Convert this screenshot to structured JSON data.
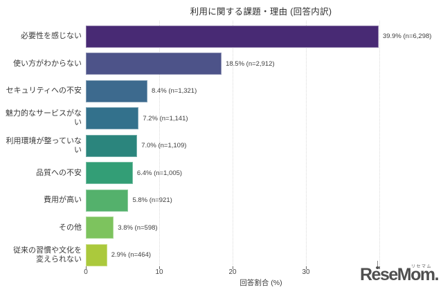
{
  "chart_data": {
    "type": "bar",
    "orientation": "horizontal",
    "title": "利用に関する課題・理由 (回答内訳)",
    "xlabel": "回答割合 (%)",
    "xlim": [
      0,
      47
    ],
    "grid": "vertical-dotted",
    "legend": "none",
    "xticks": [
      {
        "v": 0,
        "label": "0"
      },
      {
        "v": 10,
        "label": "10"
      },
      {
        "v": 20,
        "label": "20"
      },
      {
        "v": 30,
        "label": "30"
      },
      {
        "v": 40,
        "label": ""
      }
    ],
    "rows": [
      {
        "category": "必要性を感じない",
        "value": 39.9,
        "n": 6298,
        "label": "39.9% (n=6,298)",
        "color": "#482a74"
      },
      {
        "category": "使い方がわからない",
        "value": 18.5,
        "n": 2912,
        "label": "18.5% (n=2,912)",
        "color": "#4d5389"
      },
      {
        "category": "セキュリティへの不安",
        "value": 8.4,
        "n": 1321,
        "label": "8.4% (n=1,321)",
        "color": "#3d6a8e"
      },
      {
        "category": "魅力的なサービスがない",
        "value": 7.2,
        "n": 1141,
        "label": "7.2% (n=1,141)",
        "color": "#33718c"
      },
      {
        "category": "利用環境が整っていない",
        "value": 7.0,
        "n": 1109,
        "label": "7.0% (n=1,109)",
        "color": "#2b857d"
      },
      {
        "category": "品質への不安",
        "value": 6.4,
        "n": 1005,
        "label": "6.4% (n=1,005)",
        "color": "#339e76"
      },
      {
        "category": "費用が高い",
        "value": 5.8,
        "n": 921,
        "label": "5.8% (n=921)",
        "color": "#54b16c"
      },
      {
        "category": "その他",
        "value": 3.8,
        "n": 598,
        "label": "3.8% (n=598)",
        "color": "#7dc35e"
      },
      {
        "category": "従来の習慣や文化を\n変えられない",
        "value": 2.9,
        "n": 464,
        "label": "2.9% (n=464)",
        "color": "#abc93c"
      }
    ]
  },
  "watermark": {
    "brand": "ReseMom.",
    "kana": "リセマム"
  }
}
